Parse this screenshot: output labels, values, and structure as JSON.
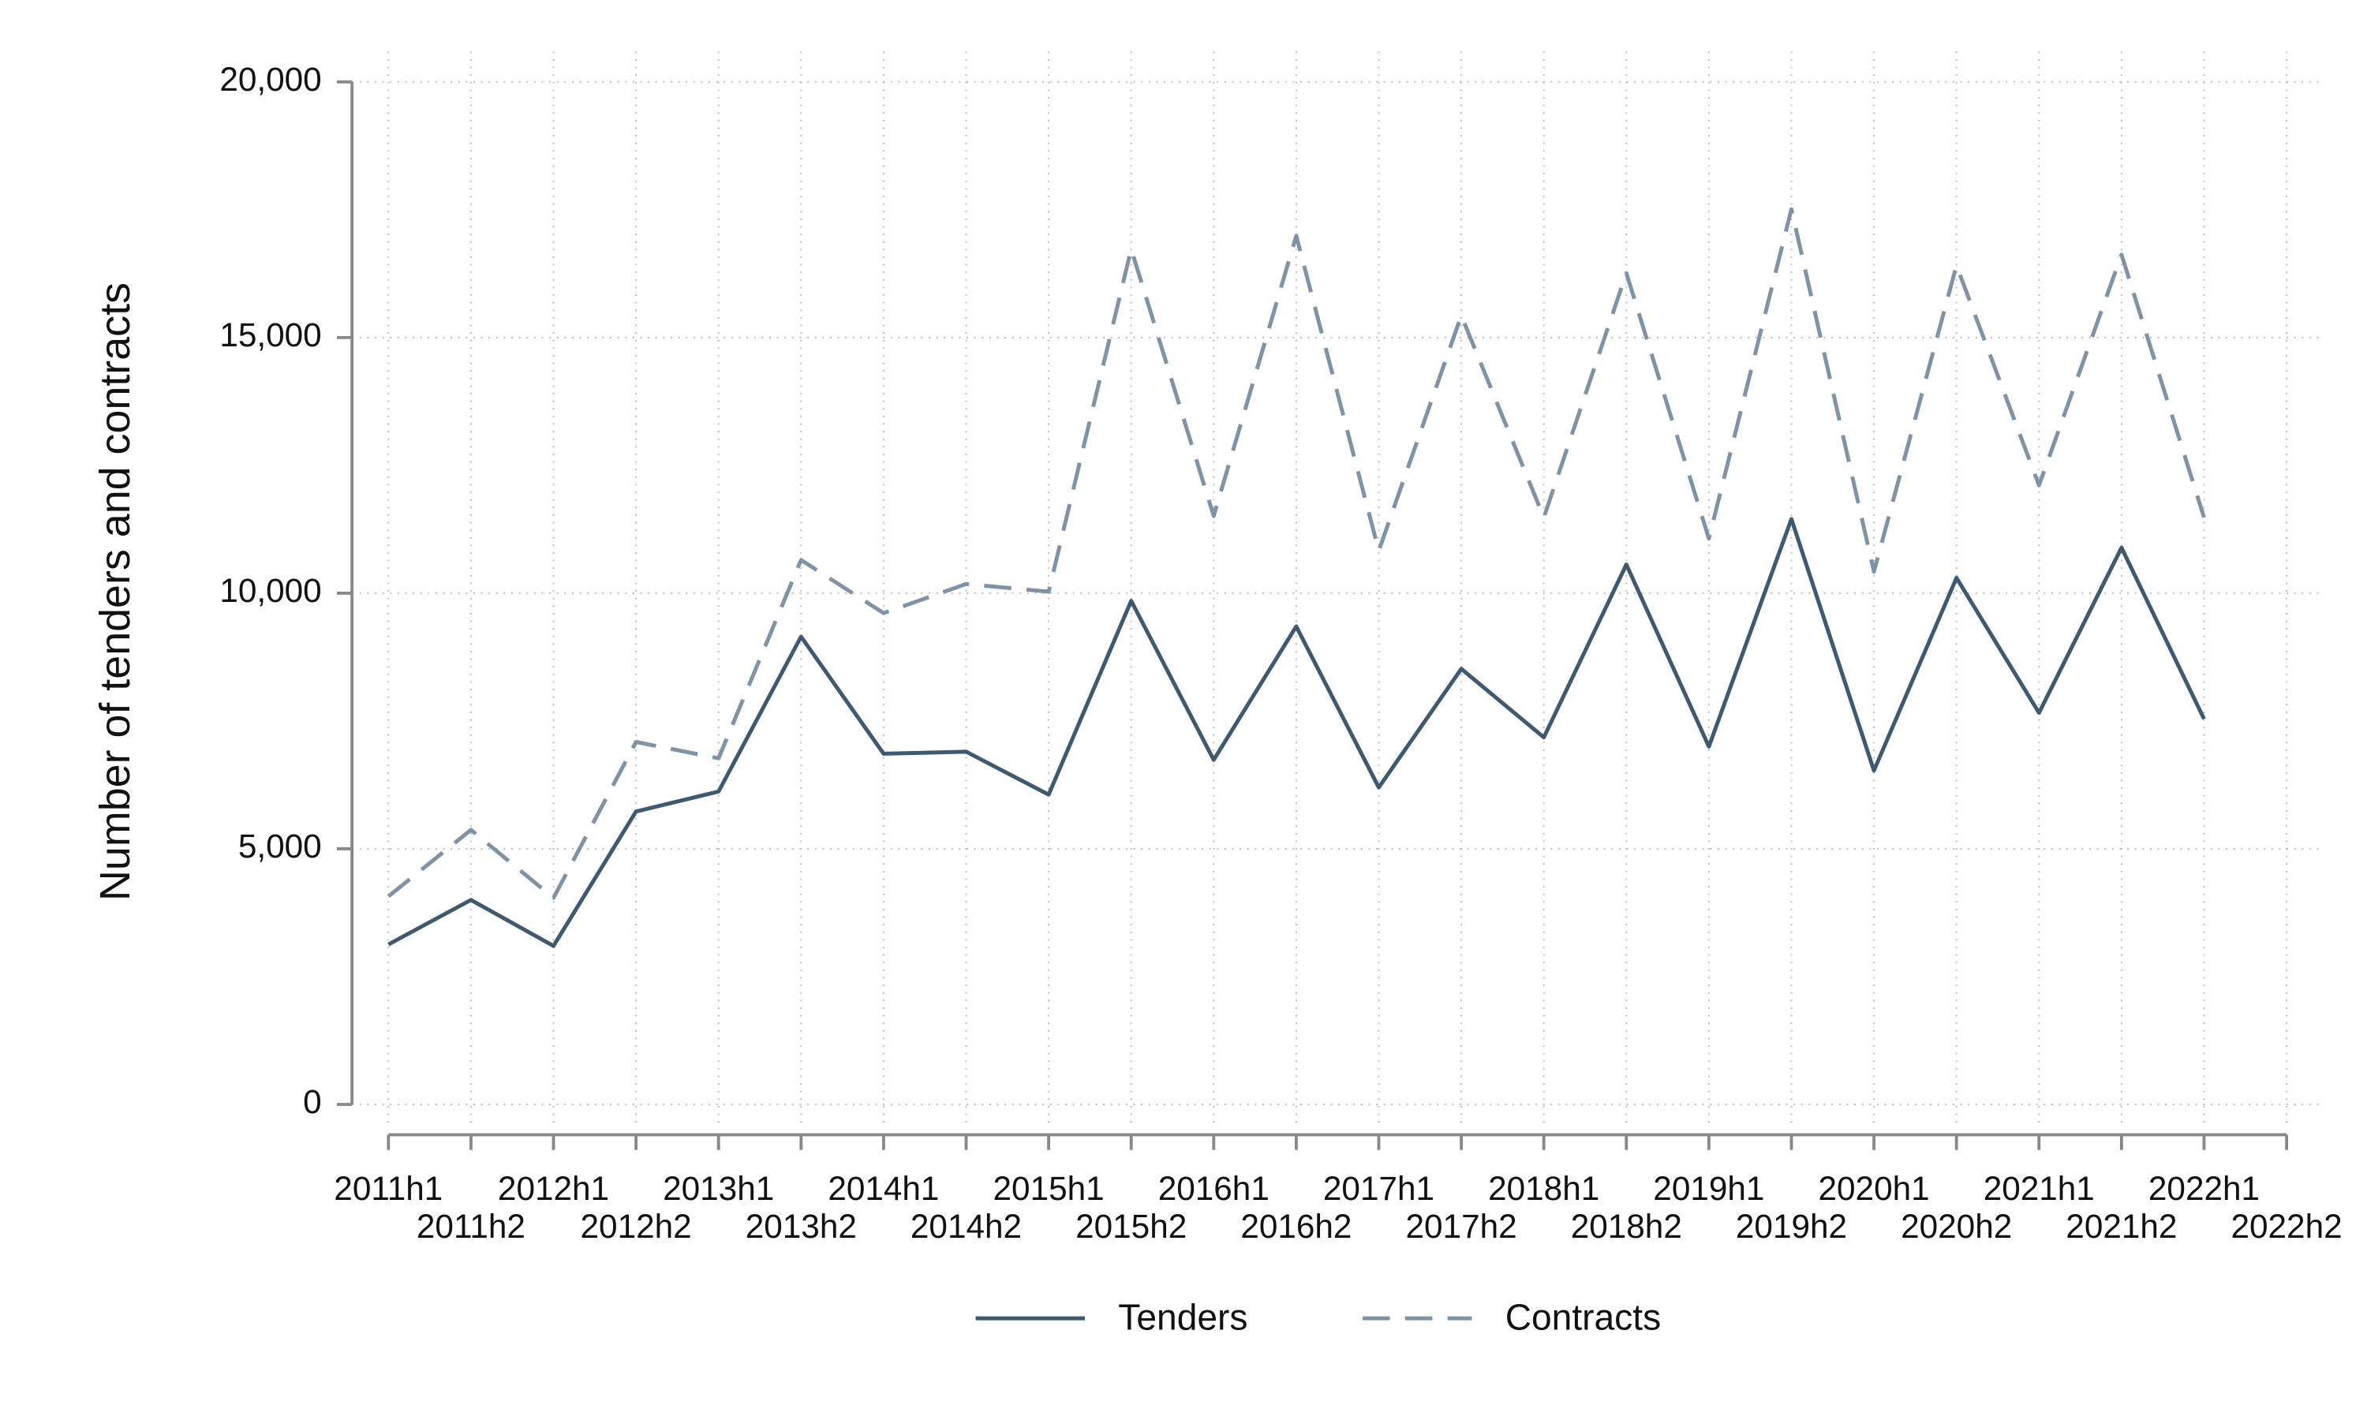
{
  "chart_data": {
    "type": "line",
    "ylabel": "Number of tenders and contracts",
    "categories": [
      "2011h1",
      "2011h2",
      "2012h1",
      "2012h2",
      "2013h1",
      "2013h2",
      "2014h1",
      "2014h2",
      "2015h1",
      "2015h2",
      "2016h1",
      "2016h2",
      "2017h1",
      "2017h2",
      "2018h1",
      "2018h2",
      "2019h1",
      "2019h2",
      "2020h1",
      "2020h2",
      "2021h1",
      "2021h2",
      "2022h1",
      "2022h2"
    ],
    "series": [
      {
        "name": "Tenders",
        "color": "#3e5a70",
        "dash": "solid",
        "values": [
          3130,
          4000,
          3100,
          5730,
          6120,
          9150,
          6860,
          6900,
          6060,
          9850,
          6740,
          9350,
          6200,
          8520,
          7180,
          10560,
          7000,
          11450,
          6530,
          10300,
          7660,
          10890,
          7540,
          null
        ]
      },
      {
        "name": "Contracts",
        "color": "#7f93a6",
        "dash": "dashed",
        "values": [
          4070,
          5370,
          4040,
          7090,
          6770,
          10650,
          9610,
          10180,
          10030,
          16730,
          11510,
          16990,
          10830,
          15430,
          11480,
          16260,
          11070,
          17510,
          10420,
          16410,
          12110,
          16620,
          11480,
          null
        ]
      }
    ],
    "ylim": [
      0,
      20000
    ],
    "yticks": [
      0,
      {
        "value": 5000,
        "label": "5,000"
      },
      {
        "value": 10000,
        "label": "10,000"
      },
      {
        "value": 15000,
        "label": "15,000"
      },
      {
        "value": 20000,
        "label": "20,000"
      }
    ],
    "grid": true,
    "legend": "bottom"
  }
}
